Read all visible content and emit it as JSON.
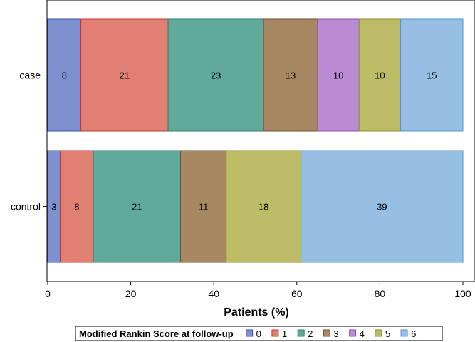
{
  "chart_data": {
    "type": "bar",
    "orientation": "horizontal",
    "stacked": true,
    "categories": [
      "case",
      "control"
    ],
    "series": [
      {
        "name": "0",
        "color": "#7f90d0",
        "edge": "#3a4fb0",
        "values": [
          8,
          3
        ]
      },
      {
        "name": "1",
        "color": "#e07f72",
        "edge": "#c0392b",
        "values": [
          21,
          8
        ]
      },
      {
        "name": "2",
        "color": "#61a99b",
        "edge": "#2e7e6f",
        "values": [
          23,
          21
        ]
      },
      {
        "name": "3",
        "color": "#a88862",
        "edge": "#6e5133",
        "values": [
          13,
          11
        ]
      },
      {
        "name": "4",
        "color": "#b98bd1",
        "edge": "#8e4fb2",
        "values": [
          10,
          0
        ]
      },
      {
        "name": "5",
        "color": "#bcbc66",
        "edge": "#8d8d2a",
        "values": [
          10,
          18
        ]
      },
      {
        "name": "6",
        "color": "#97bfe3",
        "edge": "#4d95d6",
        "values": [
          15,
          39
        ]
      }
    ],
    "xlabel": "Patients (%)",
    "ylabel": "",
    "title": "",
    "xlim": [
      0,
      100
    ],
    "xticks": [
      "0",
      "20",
      "40",
      "60",
      "80",
      "100"
    ],
    "legend_title": "Modified Rankin Score at follow-up",
    "legend_position": "bottom",
    "grid": false
  }
}
